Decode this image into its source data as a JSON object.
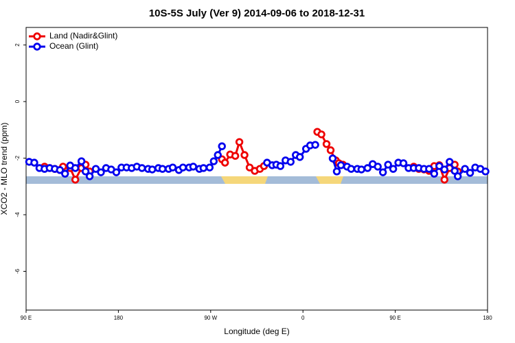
{
  "chart_data": {
    "type": "line",
    "title": "10S-5S July (Ver 9)   2014-09-06 to 2018-12-31",
    "xlabel": "Longitude (deg E)",
    "ylabel": "XCO2 - MLO trend (ppm)",
    "xlim": [
      90,
      540
    ],
    "ylim": [
      -7.37,
      2.62
    ],
    "xticks": [
      {
        "value": 90,
        "label": "90 E"
      },
      180,
      {
        "value": 270,
        "label": "90 W"
      },
      {
        "value": 360,
        "label": "0"
      },
      {
        "value": 450,
        "label": "90 E"
      },
      {
        "value": 540,
        "label": "180"
      }
    ],
    "yticks": [
      2,
      0,
      -2,
      -4,
      -6
    ],
    "legend": "top-left",
    "series": [
      {
        "name": "Land (Nadir&Glint)",
        "color": "#ee0000",
        "x": [
          108,
          113,
          118,
          123,
          126,
          133,
          138,
          144,
          148,
          152,
          null,
          281,
          284,
          289,
          294,
          298,
          303,
          308,
          313,
          318,
          322,
          null,
          374,
          378,
          383,
          387,
          392,
          395,
          399,
          null,
          468,
          473,
          478,
          483,
          488,
          493,
          498,
          503,
          508,
          511
        ],
        "values": [
          -2.3,
          -2.35,
          -2.38,
          -2.42,
          -2.3,
          -2.35,
          -2.76,
          -2.35,
          -2.23,
          -2.47,
          null,
          -2.04,
          -2.16,
          -1.87,
          -1.92,
          -1.43,
          -1.89,
          -2.33,
          -2.45,
          -2.38,
          -2.28,
          null,
          -1.07,
          -1.16,
          -1.5,
          -1.72,
          -2.08,
          -2.18,
          -2.23,
          null,
          -2.3,
          -2.38,
          -2.4,
          -2.45,
          -2.28,
          -2.25,
          -2.76,
          -2.35,
          -2.23,
          -2.47
        ]
      },
      {
        "name": "Ocean (Glint)",
        "color": "#0000ee",
        "x": [
          93,
          98,
          103,
          108,
          113,
          118,
          123,
          128,
          133,
          138,
          144,
          148,
          152,
          158,
          163,
          168,
          173,
          178,
          183,
          188,
          193,
          198,
          203,
          209,
          213,
          219,
          223,
          229,
          233,
          239,
          243,
          249,
          253,
          259,
          263,
          269,
          273,
          277,
          281,
          null,
          325,
          330,
          334,
          338,
          343,
          348,
          353,
          357,
          363,
          367,
          372,
          null,
          389,
          393,
          397,
          403,
          407,
          413,
          417,
          423,
          428,
          433,
          438,
          443,
          448,
          453,
          458,
          463,
          468,
          473,
          478,
          483,
          488,
          493,
          498,
          503,
          508,
          511,
          518,
          523,
          528,
          533,
          538
        ],
        "values": [
          -2.13,
          -2.16,
          -2.35,
          -2.38,
          -2.35,
          -2.38,
          -2.42,
          -2.55,
          -2.26,
          -2.35,
          -2.11,
          -2.47,
          -2.64,
          -2.38,
          -2.5,
          -2.35,
          -2.4,
          -2.5,
          -2.33,
          -2.33,
          -2.35,
          -2.3,
          -2.35,
          -2.38,
          -2.4,
          -2.35,
          -2.38,
          -2.38,
          -2.33,
          -2.42,
          -2.33,
          -2.33,
          -2.3,
          -2.38,
          -2.35,
          -2.33,
          -2.11,
          -1.89,
          -1.58,
          null,
          -2.16,
          -2.25,
          -2.23,
          -2.28,
          -2.08,
          -2.13,
          -1.89,
          -1.96,
          -1.67,
          -1.55,
          -1.53,
          null,
          -2.01,
          -2.47,
          -2.25,
          -2.3,
          -2.38,
          -2.38,
          -2.4,
          -2.35,
          -2.21,
          -2.3,
          -2.5,
          -2.23,
          -2.38,
          -2.16,
          -2.18,
          -2.35,
          -2.35,
          -2.35,
          -2.38,
          -2.38,
          -2.55,
          -2.28,
          -2.4,
          -2.13,
          -2.45,
          -2.64,
          -2.38,
          -2.52,
          -2.33,
          -2.38,
          -2.47
        ]
      }
    ]
  }
}
